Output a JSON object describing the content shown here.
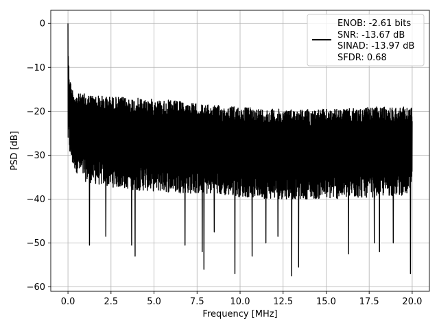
{
  "chart_data": {
    "type": "line",
    "title": "",
    "xlabel": "Frequency [MHz]",
    "ylabel": "PSD [dB]",
    "xlim": [
      -1.0,
      21.0
    ],
    "ylim": [
      -61.0,
      3.0
    ],
    "grid": true,
    "legend_placement": "top-right",
    "x_ticks": [
      0.0,
      2.5,
      5.0,
      7.5,
      10.0,
      12.5,
      15.0,
      17.5,
      20.0
    ],
    "x_tick_labels": [
      "0.0",
      "2.5",
      "5.0",
      "7.5",
      "10.0",
      "12.5",
      "15.0",
      "17.5",
      "20.0"
    ],
    "y_ticks": [
      0,
      -10,
      -20,
      -30,
      -40,
      -50,
      -60
    ],
    "y_tick_labels": [
      "0",
      "−10",
      "−20",
      "−30",
      "−40",
      "−50",
      "−60"
    ],
    "series": [
      {
        "name": "ENOB: -2.61 bits\nSNR: -13.67 dB\nSINAD: -13.97 dB\nSFDR: 0.68",
        "color": "#000000",
        "envelope": {
          "x": [
            0.0,
            0.02,
            0.05,
            0.1,
            0.2,
            0.3,
            0.5,
            1.0,
            2.0,
            4.0,
            6.0,
            8.0,
            10.0,
            12.0,
            14.0,
            16.0,
            18.0,
            20.0
          ],
          "upper": [
            0.0,
            -6.0,
            -9.0,
            -12.0,
            -14.0,
            -15.0,
            -16.0,
            -16.0,
            -16.5,
            -17.0,
            -17.5,
            -18.5,
            -19.0,
            -19.5,
            -19.5,
            -19.5,
            -19.0,
            -19.0
          ],
          "lower": [
            -29.0,
            -26.0,
            -28.0,
            -30.0,
            -32.0,
            -33.0,
            -34.0,
            -36.0,
            -37.0,
            -38.0,
            -38.5,
            -39.0,
            -39.5,
            -40.0,
            -40.0,
            -40.0,
            -39.5,
            -39.0
          ]
        },
        "dips": [
          {
            "x": 1.25,
            "y": -50.5
          },
          {
            "x": 2.2,
            "y": -48.5
          },
          {
            "x": 3.7,
            "y": -50.5
          },
          {
            "x": 3.9,
            "y": -53.0
          },
          {
            "x": 6.8,
            "y": -50.5
          },
          {
            "x": 7.8,
            "y": -52.0
          },
          {
            "x": 7.9,
            "y": -56.0
          },
          {
            "x": 8.5,
            "y": -47.5
          },
          {
            "x": 9.7,
            "y": -57.0
          },
          {
            "x": 10.7,
            "y": -53.0
          },
          {
            "x": 11.5,
            "y": -50.0
          },
          {
            "x": 12.2,
            "y": -48.5
          },
          {
            "x": 13.0,
            "y": -57.5
          },
          {
            "x": 13.4,
            "y": -55.5
          },
          {
            "x": 16.3,
            "y": -52.5
          },
          {
            "x": 17.8,
            "y": -50.0
          },
          {
            "x": 18.1,
            "y": -52.0
          },
          {
            "x": 18.9,
            "y": -50.0
          },
          {
            "x": 19.9,
            "y": -57.0
          }
        ]
      }
    ]
  },
  "legend": {
    "lines": [
      "ENOB: -2.61 bits",
      "SNR: -13.67 dB",
      "SINAD: -13.97 dB",
      "SFDR: 0.68"
    ]
  }
}
